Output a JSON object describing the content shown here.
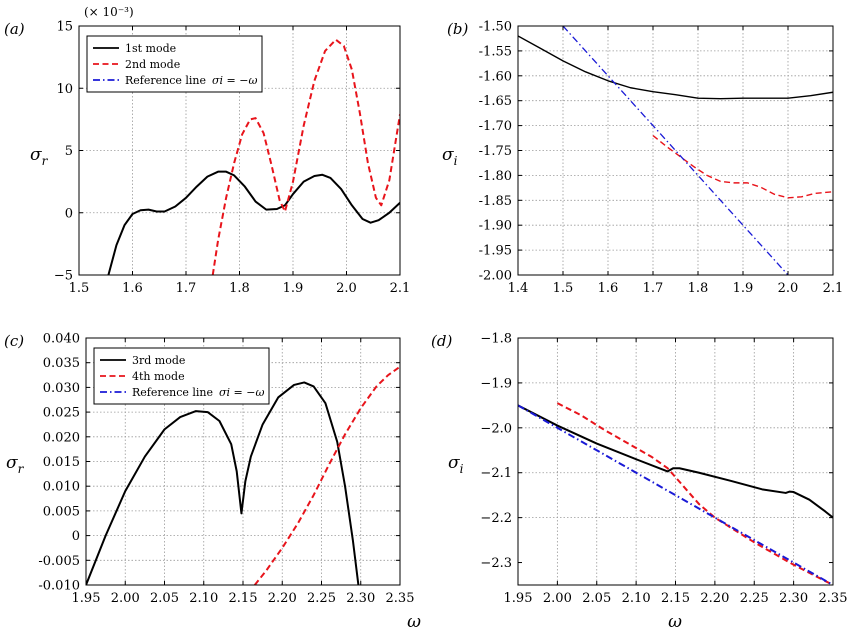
{
  "chart_data": [
    {
      "panel": "(a)",
      "type": "line",
      "ylabel_main": "σ",
      "ylabel_sub": "r",
      "scale_note": "(× 10⁻³)",
      "xlim": [
        1.5,
        2.1
      ],
      "ylim": [
        -5,
        15
      ],
      "xticks": [
        1.5,
        1.6,
        1.7,
        1.8,
        1.9,
        2.0,
        2.1
      ],
      "xtick_labels": [
        "1.5",
        "1.6",
        "1.7",
        "1.8",
        "1.9",
        "2.0",
        "2.1"
      ],
      "yticks": [
        -5,
        0,
        5,
        10,
        15
      ],
      "ytick_labels": [
        "−5",
        "0",
        "5",
        "10",
        "15"
      ],
      "grid": true,
      "legend": [
        {
          "label": "1st mode",
          "color": "#000000",
          "dash": "solid"
        },
        {
          "label": "2nd mode",
          "color": "#e8141b",
          "dash": "dashed"
        },
        {
          "label": "Reference line",
          "math": "σi = −ω",
          "color": "#1a1ad6",
          "dash": "dashdot"
        }
      ],
      "series": [
        {
          "name": "1st mode",
          "color": "#000000",
          "dash": "solid",
          "x": [
            1.555,
            1.57,
            1.585,
            1.6,
            1.615,
            1.63,
            1.645,
            1.66,
            1.68,
            1.7,
            1.72,
            1.74,
            1.76,
            1.775,
            1.79,
            1.81,
            1.83,
            1.85,
            1.87,
            1.885,
            1.9,
            1.92,
            1.94,
            1.955,
            1.97,
            1.99,
            2.01,
            2.03,
            2.045,
            2.06,
            2.08,
            2.1
          ],
          "y": [
            -5.0,
            -2.6,
            -1.0,
            -0.1,
            0.2,
            0.25,
            0.1,
            0.1,
            0.5,
            1.2,
            2.1,
            2.9,
            3.3,
            3.3,
            3.0,
            2.1,
            0.9,
            0.25,
            0.3,
            0.6,
            1.5,
            2.5,
            2.95,
            3.05,
            2.8,
            1.9,
            0.6,
            -0.5,
            -0.8,
            -0.6,
            0.0,
            0.8
          ]
        },
        {
          "name": "2nd mode",
          "color": "#e8141b",
          "dash": "dashed",
          "x": [
            1.75,
            1.76,
            1.775,
            1.79,
            1.805,
            1.82,
            1.83,
            1.845,
            1.86,
            1.875,
            1.885,
            1.9,
            1.92,
            1.94,
            1.96,
            1.98,
            1.995,
            2.01,
            2.025,
            2.04,
            2.055,
            2.065,
            2.08,
            2.1
          ],
          "y": [
            -5.0,
            -2.2,
            1.2,
            4.0,
            6.3,
            7.5,
            7.6,
            6.4,
            3.8,
            1.0,
            0.1,
            2.5,
            7.0,
            10.6,
            13.0,
            13.9,
            13.4,
            11.5,
            8.0,
            4.0,
            1.2,
            0.6,
            2.6,
            7.9
          ]
        }
      ]
    },
    {
      "panel": "(b)",
      "type": "line",
      "ylabel_main": "σ",
      "ylabel_sub": "i",
      "xlim": [
        1.4,
        2.1
      ],
      "ylim": [
        -2.0,
        -1.5
      ],
      "xticks": [
        1.4,
        1.5,
        1.6,
        1.7,
        1.8,
        1.9,
        2.0,
        2.1
      ],
      "xtick_labels": [
        "1.4",
        "1.5",
        "1.6",
        "1.7",
        "1.8",
        "1.9",
        "2.0",
        "2.1"
      ],
      "yticks": [
        -2.0,
        -1.95,
        -1.9,
        -1.85,
        -1.8,
        -1.75,
        -1.7,
        -1.65,
        -1.6,
        -1.55,
        -1.5
      ],
      "ytick_labels": [
        "-2.00",
        "-1.95",
        "-1.90",
        "-1.85",
        "-1.80",
        "-1.75",
        "-1.70",
        "-1.65",
        "-1.60",
        "-1.55",
        "-1.50"
      ],
      "grid": true,
      "series": [
        {
          "name": "1st mode",
          "color": "#000000",
          "dash": "solid",
          "width": 1.4,
          "x": [
            1.4,
            1.45,
            1.5,
            1.55,
            1.6,
            1.65,
            1.7,
            1.75,
            1.8,
            1.85,
            1.9,
            1.95,
            2.0,
            2.05,
            2.1
          ],
          "y": [
            -1.52,
            -1.545,
            -1.57,
            -1.592,
            -1.61,
            -1.624,
            -1.632,
            -1.638,
            -1.645,
            -1.646,
            -1.645,
            -1.645,
            -1.645,
            -1.64,
            -1.633
          ]
        },
        {
          "name": "2nd mode",
          "color": "#e8141b",
          "dash": "dashed",
          "width": 1.4,
          "x": [
            1.7,
            1.73,
            1.76,
            1.79,
            1.82,
            1.85,
            1.88,
            1.91,
            1.94,
            1.97,
            2.0,
            2.03,
            2.06,
            2.1
          ],
          "y": [
            -1.72,
            -1.742,
            -1.762,
            -1.782,
            -1.8,
            -1.812,
            -1.815,
            -1.815,
            -1.824,
            -1.838,
            -1.845,
            -1.843,
            -1.836,
            -1.833
          ]
        },
        {
          "name": "Reference line",
          "color": "#1a1ad6",
          "dash": "dashdot",
          "width": 1.3,
          "x": [
            1.5,
            2.0
          ],
          "y": [
            -1.5,
            -2.0
          ]
        }
      ]
    },
    {
      "panel": "(c)",
      "type": "line",
      "ylabel_main": "σ",
      "ylabel_sub": "r",
      "xlim": [
        1.95,
        2.35
      ],
      "ylim": [
        -0.01,
        0.04
      ],
      "xticks": [
        1.95,
        2.0,
        2.05,
        2.1,
        2.15,
        2.2,
        2.25,
        2.3,
        2.35
      ],
      "xtick_labels": [
        "1.95",
        "2.00",
        "2.05",
        "2.10",
        "2.15",
        "2.20",
        "2.25",
        "2.30",
        "2.35"
      ],
      "yticks": [
        -0.01,
        -0.005,
        0,
        0.005,
        0.01,
        0.015,
        0.02,
        0.025,
        0.03,
        0.035,
        0.04
      ],
      "ytick_labels": [
        "-0.010",
        "-0.005",
        "0",
        "0.005",
        "0.010",
        "0.015",
        "0.020",
        "0.025",
        "0.030",
        "0.035",
        "0.040"
      ],
      "grid": true,
      "legend": [
        {
          "label": "3rd mode",
          "color": "#000000",
          "dash": "solid"
        },
        {
          "label": "4th mode",
          "color": "#e8141b",
          "dash": "dashed"
        },
        {
          "label": "Reference line",
          "math": "σi = −ω",
          "color": "#1a1ad6",
          "dash": "dashdot"
        }
      ],
      "series": [
        {
          "name": "3rd mode",
          "color": "#000000",
          "dash": "solid",
          "x": [
            1.95,
            1.975,
            2.0,
            2.025,
            2.05,
            2.07,
            2.09,
            2.105,
            2.12,
            2.135,
            2.142,
            2.148,
            2.153,
            2.16,
            2.175,
            2.195,
            2.215,
            2.228,
            2.24,
            2.255,
            2.27,
            2.28,
            2.29,
            2.297
          ],
          "y": [
            -0.01,
            0.0,
            0.009,
            0.016,
            0.0215,
            0.024,
            0.0252,
            0.025,
            0.0232,
            0.0185,
            0.013,
            0.0045,
            0.011,
            0.016,
            0.0225,
            0.028,
            0.0305,
            0.031,
            0.0302,
            0.0268,
            0.019,
            0.01,
            -0.001,
            -0.01
          ]
        },
        {
          "name": "4th mode",
          "color": "#e8141b",
          "dash": "dashed",
          "x": [
            2.165,
            2.18,
            2.2,
            2.22,
            2.24,
            2.26,
            2.28,
            2.3,
            2.32,
            2.335,
            2.35
          ],
          "y": [
            -0.01,
            -0.007,
            -0.0025,
            0.0025,
            0.0082,
            0.0145,
            0.0205,
            0.0258,
            0.0302,
            0.0325,
            0.0342
          ]
        }
      ]
    },
    {
      "panel": "(d)",
      "type": "line",
      "ylabel_main": "σ",
      "ylabel_sub": "i",
      "xlim": [
        1.95,
        2.35
      ],
      "ylim": [
        -2.35,
        -1.8
      ],
      "xticks": [
        1.95,
        2.0,
        2.05,
        2.1,
        2.15,
        2.2,
        2.25,
        2.3,
        2.35
      ],
      "xtick_labels": [
        "1.95",
        "2.00",
        "2.05",
        "2.10",
        "2.15",
        "2.20",
        "2.25",
        "2.30",
        "2.35"
      ],
      "yticks": [
        -2.3,
        -2.2,
        -2.1,
        -2.0,
        -1.9,
        -1.8
      ],
      "ytick_labels": [
        "−2.3",
        "−2.2",
        "−2.1",
        "−2.0",
        "−1.9",
        "−1.8"
      ],
      "grid": true,
      "series": [
        {
          "name": "3rd mode",
          "color": "#000000",
          "dash": "solid",
          "x": [
            1.95,
            2.0,
            2.05,
            2.1,
            2.14,
            2.147,
            2.155,
            2.18,
            2.22,
            2.26,
            2.29,
            2.295,
            2.3,
            2.32,
            2.34,
            2.35
          ],
          "y": [
            -1.95,
            -1.995,
            -2.035,
            -2.07,
            -2.097,
            -2.09,
            -2.09,
            -2.1,
            -2.118,
            -2.137,
            -2.145,
            -2.142,
            -2.143,
            -2.16,
            -2.186,
            -2.2
          ]
        },
        {
          "name": "4th mode",
          "color": "#e8141b",
          "dash": "dashed",
          "x": [
            2.0,
            2.03,
            2.06,
            2.09,
            2.12,
            2.14,
            2.16,
            2.18,
            2.2,
            2.25,
            2.3,
            2.35
          ],
          "y": [
            -1.945,
            -1.972,
            -2.005,
            -2.035,
            -2.065,
            -2.09,
            -2.13,
            -2.17,
            -2.2,
            -2.255,
            -2.305,
            -2.35
          ]
        },
        {
          "name": "Reference line",
          "color": "#1a1ad6",
          "dash": "dashdot",
          "x": [
            1.95,
            2.35
          ],
          "y": [
            -1.95,
            -2.35
          ]
        }
      ]
    }
  ],
  "axis_labels": {
    "x_bottom_left": "ω",
    "x_bottom_right": "ω"
  }
}
